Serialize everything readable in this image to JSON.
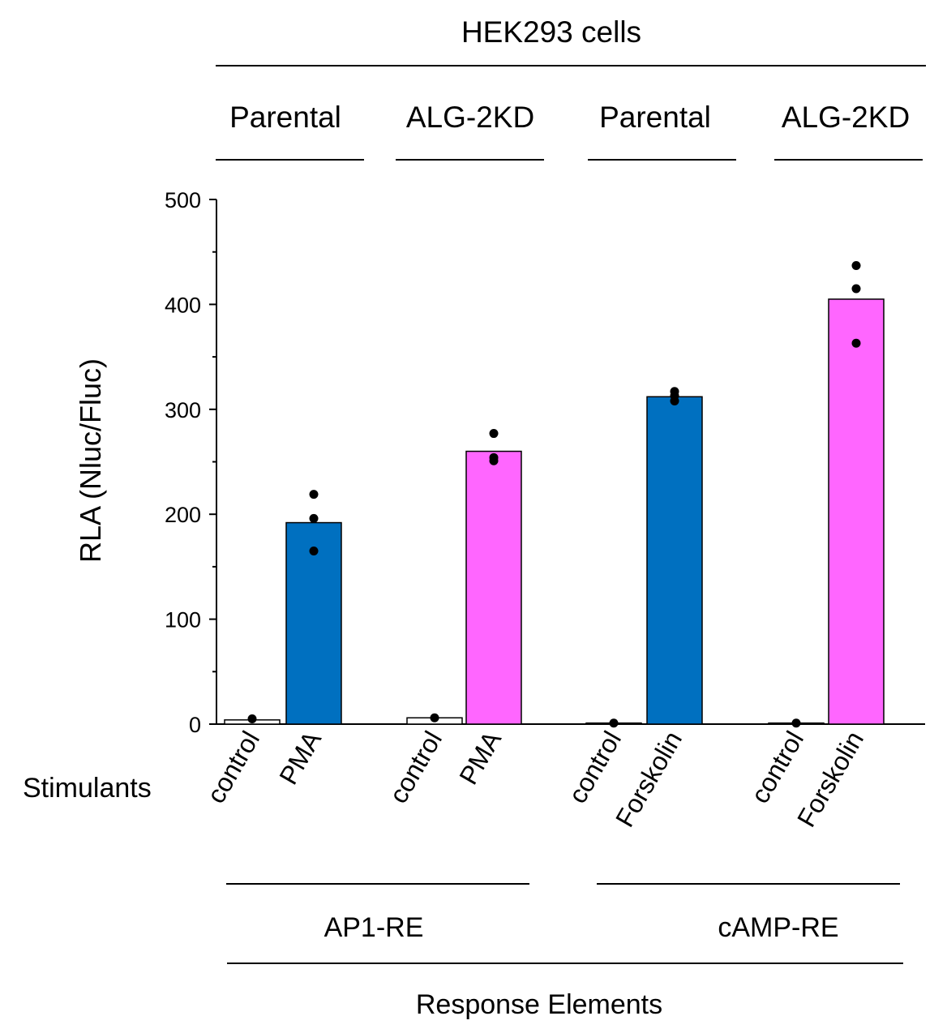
{
  "chart_data": {
    "type": "bar",
    "header": {
      "title": "HEK293   cells",
      "cell_lines": [
        "Parental",
        "ALG-2KD",
        "Parental",
        "ALG-2KD"
      ]
    },
    "ylabel": "RLA (Nluc/Fluc)",
    "ylim": [
      0,
      500
    ],
    "yticks": [
      "0",
      "100",
      "200",
      "300",
      "400",
      "500"
    ],
    "stimulants_label": "Stimulants",
    "bars": [
      {
        "category": "control",
        "value": 4,
        "color": "#ffffff",
        "points": [
          5
        ]
      },
      {
        "category": "PMA",
        "value": 192,
        "color": "#0070c0",
        "points": [
          219,
          196,
          165
        ]
      },
      {
        "category": "control",
        "value": 6,
        "color": "#ffffff",
        "points": [
          6
        ]
      },
      {
        "category": "PMA",
        "value": 260,
        "color": "#ff66ff",
        "points": [
          277,
          254,
          251
        ]
      },
      {
        "category": "control",
        "value": 1,
        "color": "#ffffff",
        "points": [
          1
        ]
      },
      {
        "category": "Forskolin",
        "value": 312,
        "color": "#0070c0",
        "points": [
          317,
          313,
          308
        ]
      },
      {
        "category": "control",
        "value": 1,
        "color": "#ffffff",
        "points": [
          1
        ]
      },
      {
        "category": "Forskolin",
        "value": 405,
        "color": "#ff66ff",
        "points": [
          437,
          415,
          363
        ]
      }
    ],
    "response_elements": [
      "AP1-RE",
      "cAMP-RE"
    ],
    "xlabel": "Response Elements"
  }
}
